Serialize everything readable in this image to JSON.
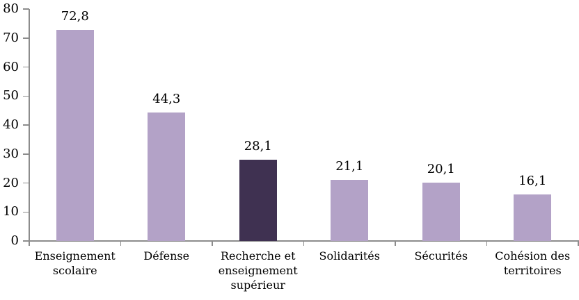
{
  "chart_data": {
    "type": "bar",
    "title": "",
    "xlabel": "",
    "ylabel": "",
    "categories": [
      "Enseignement scolaire",
      "Défense",
      "Recherche et enseignement supérieur",
      "Solidarités",
      "Sécurités",
      "Cohésion des territoires"
    ],
    "values": [
      72.8,
      44.3,
      28.1,
      21.1,
      20.1,
      16.1
    ],
    "value_labels": [
      "72,8",
      "44,3",
      "28,1",
      "21,1",
      "20,1",
      "16,1"
    ],
    "bar_colors": [
      "#B3A2C7",
      "#B3A2C7",
      "#3F3151",
      "#B3A2C7",
      "#B3A2C7",
      "#B3A2C7"
    ],
    "default_bar_color": "#B3A2C7",
    "highlight_bar_color": "#3F3151",
    "highlight_index": 2,
    "ylim": [
      0,
      80
    ],
    "ytick_step": 10,
    "yticks": [
      "0",
      "10",
      "20",
      "30",
      "40",
      "50",
      "60",
      "70",
      "80"
    ],
    "grid": false,
    "legend": false,
    "axis_color": "#8C8C8C",
    "text_color": "#000000",
    "background_color": "#FFFFFF"
  }
}
